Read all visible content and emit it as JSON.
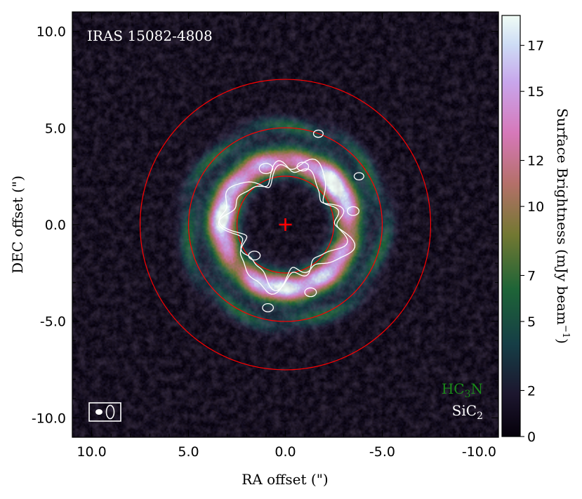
{
  "chart_data": {
    "type": "heatmap",
    "target_label": "IRAS 15082-4808",
    "xlabel": "RA offset (\")",
    "ylabel": "DEC offset (\")",
    "xlim": [
      11,
      -11
    ],
    "ylim": [
      -11,
      11
    ],
    "x_ticks": [
      {
        "value": 10,
        "label": "10.0"
      },
      {
        "value": 5,
        "label": "5.0"
      },
      {
        "value": 0,
        "label": "0.0"
      },
      {
        "value": -5,
        "label": "-5.0"
      },
      {
        "value": -10,
        "label": "-10.0"
      }
    ],
    "y_ticks": [
      {
        "value": 10,
        "label": "10.0"
      },
      {
        "value": 5,
        "label": "5.0"
      },
      {
        "value": 0,
        "label": "0.0"
      },
      {
        "value": -5,
        "label": "-5.0"
      },
      {
        "value": -10,
        "label": "-10.0"
      }
    ],
    "colorbar": {
      "label": "Surface Brightness (mJy beam",
      "label_sup": "−1",
      "label_close": ")",
      "range": [
        0,
        18.3
      ],
      "ticks": [
        0,
        2,
        5,
        7,
        10,
        12,
        15,
        17
      ],
      "colormap": "cubehelix"
    },
    "legend": [
      {
        "text": "HC",
        "sub": "3",
        "tail": "N",
        "color": "#1a8a1a"
      },
      {
        "text": "SiC",
        "sub": "2",
        "tail": "",
        "color": "#ffffff"
      }
    ],
    "legend_placement": "bottom-right",
    "reference_circles_arcsec": [
      2.5,
      5.0,
      7.5
    ],
    "circle_color": "#ff0000",
    "center_marker": {
      "x": 0,
      "y": 0,
      "symbol": "+",
      "color": "#ff0000"
    },
    "hc3n_ring": {
      "peak_radius_arcsec": 3.3,
      "width_arcsec": 0.75,
      "peak_mJy": 17,
      "outer_shell_radius_arcsec": 5.1,
      "outer_shell_mJy": 4
    },
    "sic2_contour_color": "#ffffff",
    "beam": {
      "x": 9.6,
      "y": -9.7
    }
  }
}
